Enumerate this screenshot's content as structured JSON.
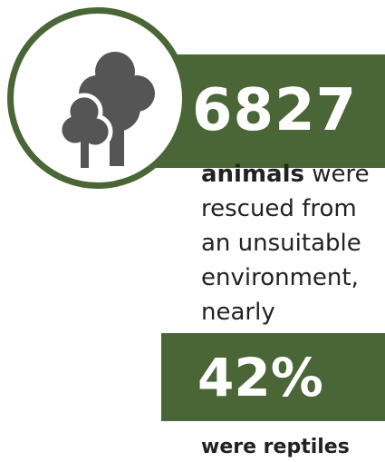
{
  "stat_1": {
    "value": "6827"
  },
  "description": {
    "bold_word": "animals",
    "rest_first_line": " were",
    "lines": [
      "rescued from",
      "an unsuitable",
      "environment,",
      "nearly"
    ]
  },
  "stat_2": {
    "value": "42%"
  },
  "footer": {
    "text": "were reptiles"
  },
  "icon": "trees-icon",
  "colors": {
    "accent": "#4a6536",
    "icon": "#555555",
    "text": "#222222"
  }
}
